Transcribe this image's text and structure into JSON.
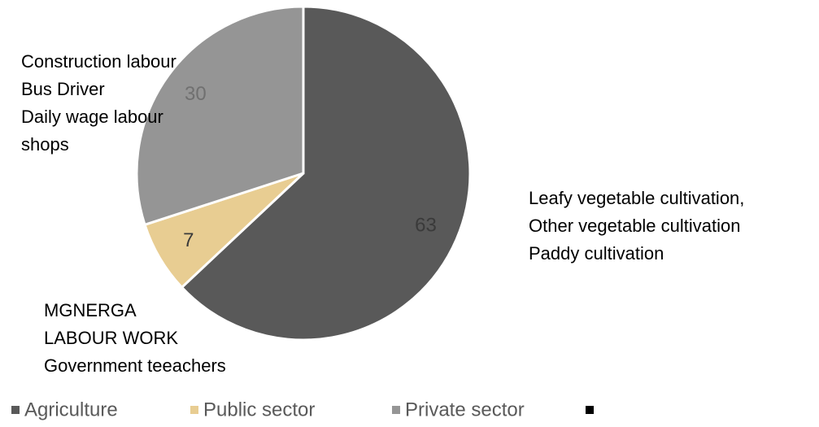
{
  "chart_data": {
    "type": "pie",
    "categories": [
      "Agriculture",
      "Public sector",
      "Private sector"
    ],
    "values": [
      63,
      7,
      30
    ],
    "colors": [
      "#595959",
      "#e8cd92",
      "#959595"
    ],
    "label_colors": [
      "#3a3a3a",
      "#3a3a3a",
      "#707070"
    ],
    "annotations": [
      [
        "Leafy vegetable cultivation,",
        "Other vegetable cultivation",
        "Paddy cultivation"
      ],
      [
        "MGNERGA",
        "LABOUR WORK",
        "Government teeachers"
      ],
      [
        "Construction labour",
        "Bus Driver",
        "Daily wage labour",
        "shops"
      ]
    ]
  }
}
